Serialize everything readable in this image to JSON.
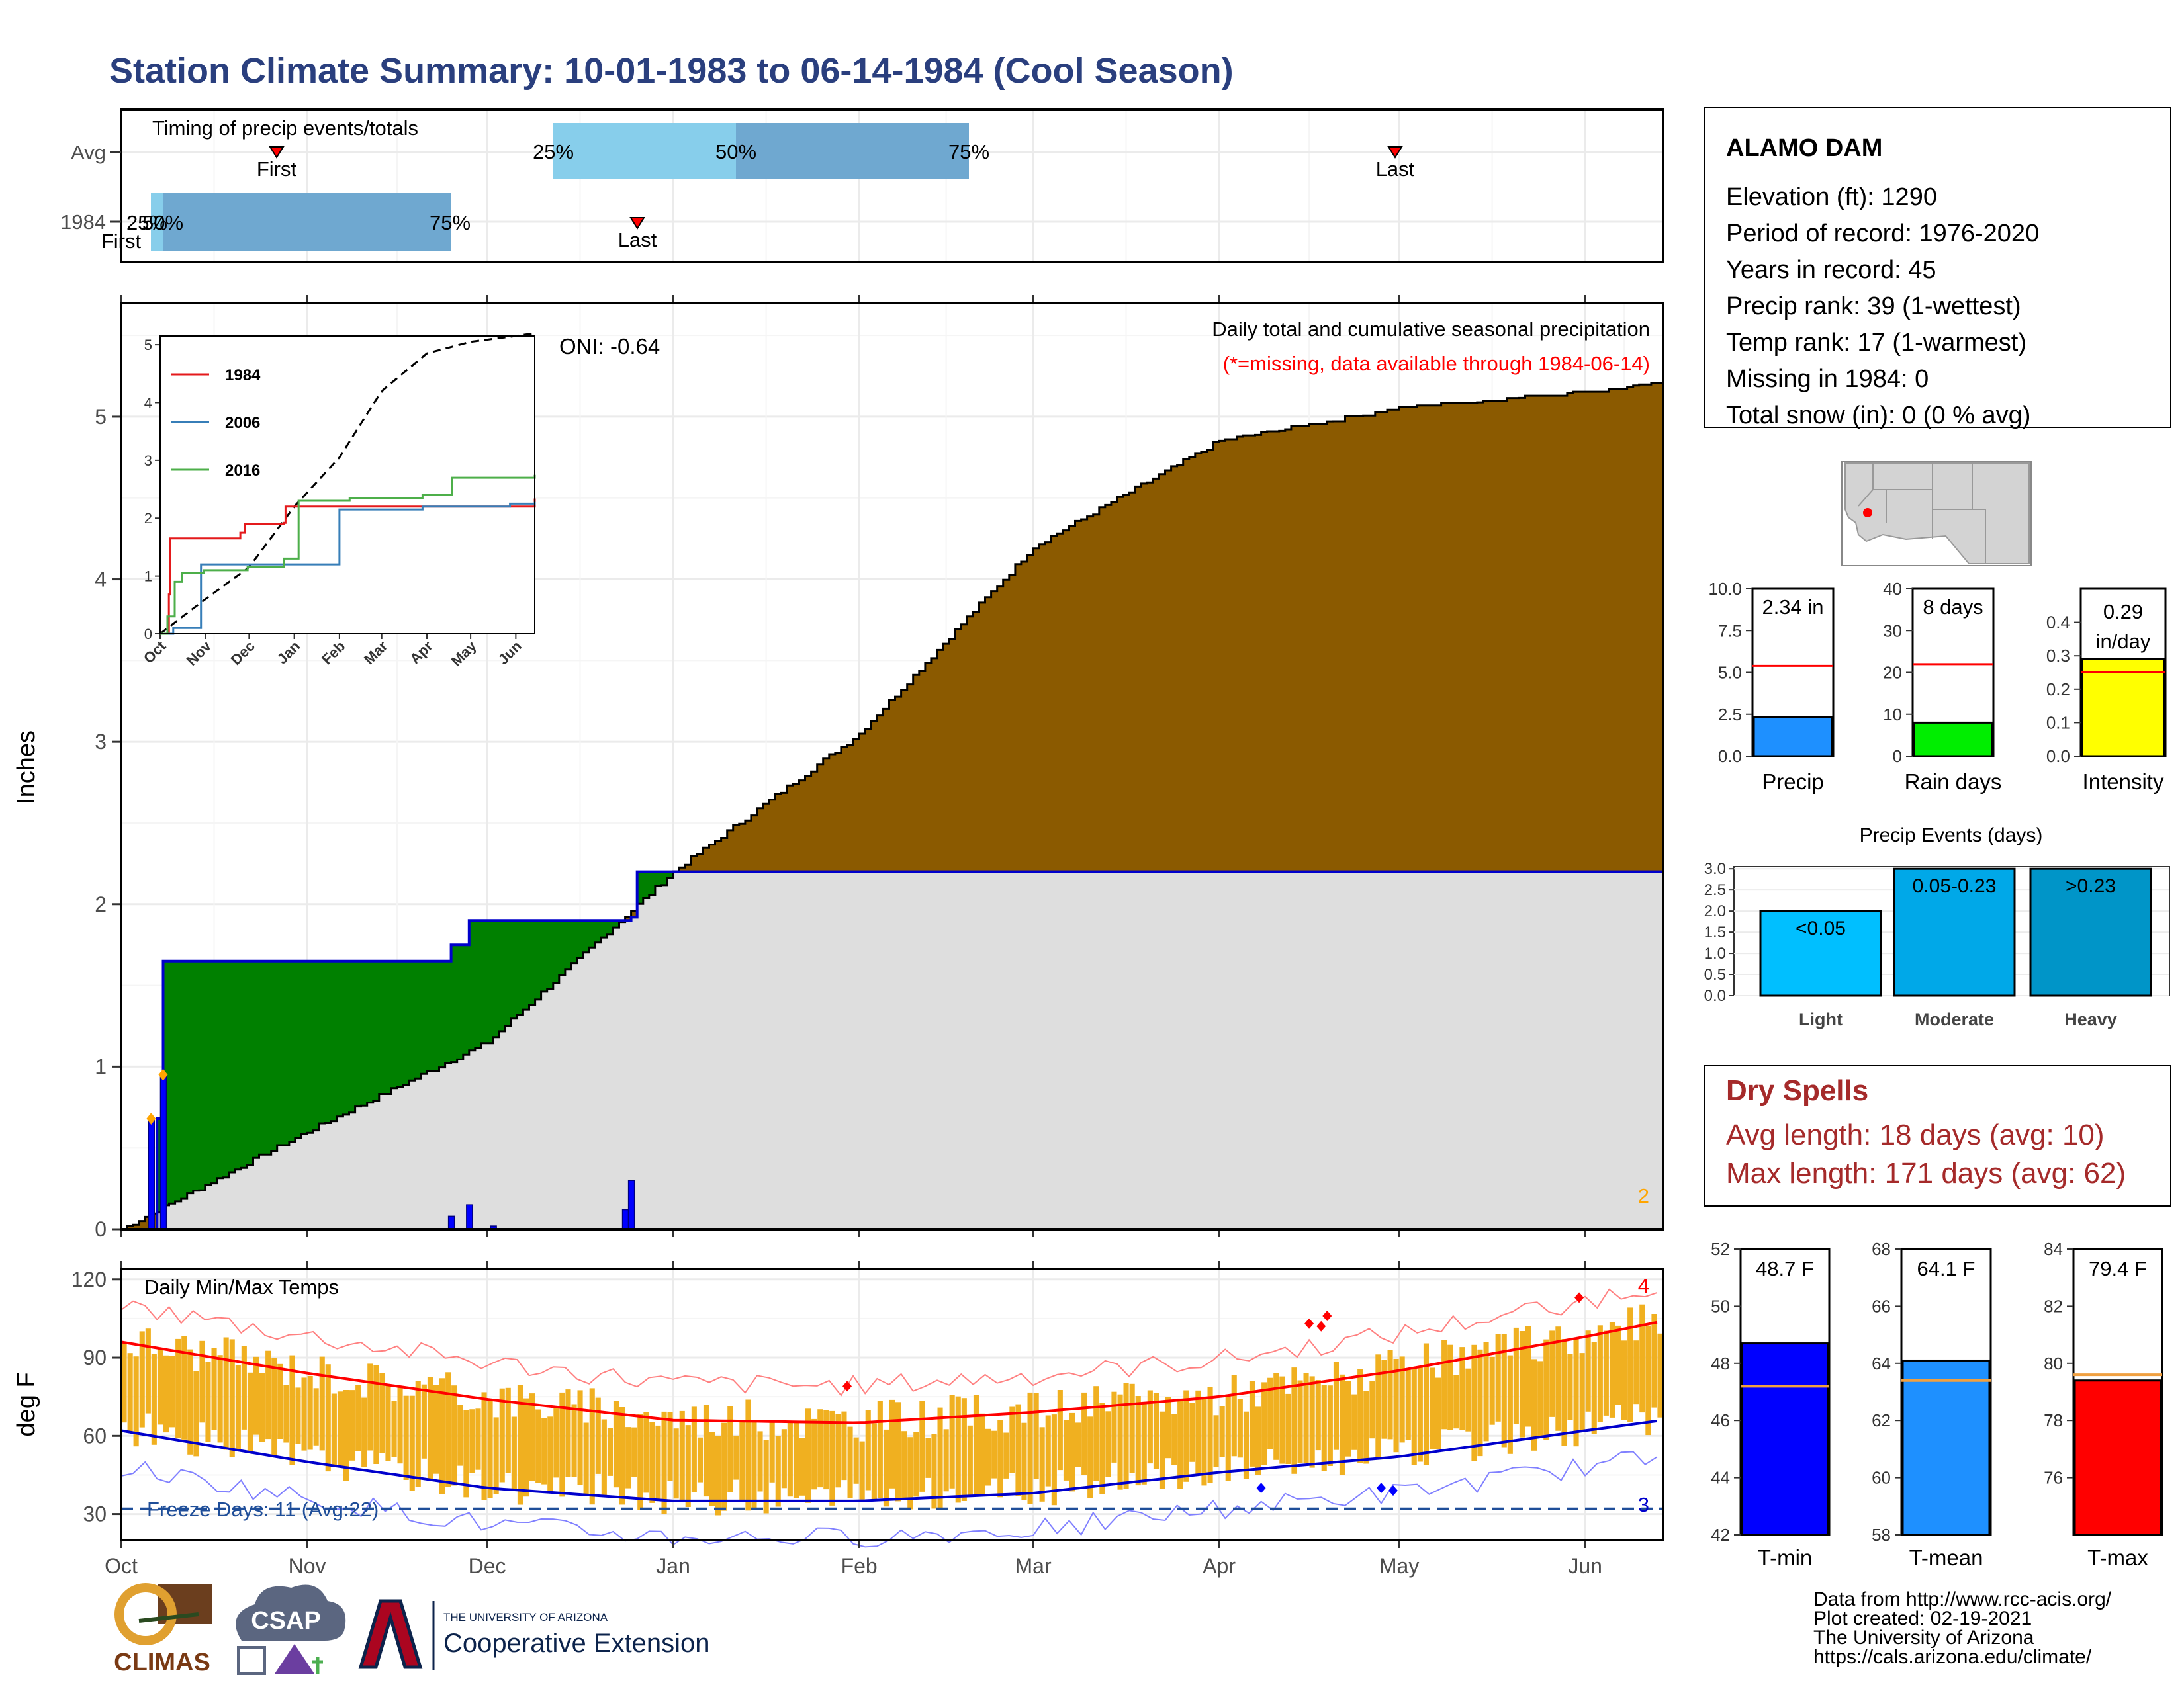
{
  "title": "Station Climate Summary: 10-01-1983 to 06-14-1984 (Cool Season)",
  "colors": {
    "title": "#2a3f7e",
    "precip_fill": "#8b5a00",
    "green_fill": "#008000",
    "grey_fill": "#dedede",
    "blue_line": "#0000cc",
    "temp_bar": "#f0b020",
    "tmax_line": "#ff0000",
    "tmin_line": "#0000cc",
    "dry_text": "#a52a2a",
    "light_blue": "#87ceeb",
    "steel_blue": "#6fa8d0"
  },
  "timing": {
    "title": "Timing of precip events/totals",
    "rows": [
      {
        "label": "Avg",
        "q25": "25%",
        "q50": "50%",
        "q75": "75%",
        "first": "First",
        "last": "Last"
      },
      {
        "label": "1984",
        "q25": "25%",
        "q50": "50%",
        "q75": "75%",
        "first": "First",
        "last": "Last"
      }
    ]
  },
  "main": {
    "ylabel": "Inches",
    "oni": "ONI: -0.64",
    "caption": "Daily total and cumulative seasonal precipitation",
    "missing_note": "(*=missing, data available through 1984-06-14)",
    "corner_count": "2",
    "yticks": [
      "0",
      "1",
      "2",
      "3",
      "4",
      "5"
    ],
    "months": [
      "Oct",
      "Nov",
      "Dec",
      "Jan",
      "Feb",
      "Mar",
      "Apr",
      "May",
      "Jun"
    ]
  },
  "inset": {
    "legend": [
      "1984",
      "2006",
      "2016"
    ],
    "legend_colors": [
      "#e41a1c",
      "#377eb8",
      "#4daf4a"
    ],
    "yticks": [
      "0",
      "1",
      "2",
      "3",
      "4",
      "5"
    ],
    "months": [
      "Oct",
      "Nov",
      "Dec",
      "Jan",
      "Feb",
      "Mar",
      "Apr",
      "May",
      "Jun"
    ]
  },
  "temps": {
    "title": "Daily Min/Max Temps",
    "ylabel": "deg F",
    "freeze": "Freeze Days: 11 (Avg:22)",
    "count_top": "4",
    "count_bottom": "3",
    "yticks": [
      "30",
      "60",
      "90",
      "120"
    ],
    "months": [
      "Oct",
      "Nov",
      "Dec",
      "Jan",
      "Feb",
      "Mar",
      "Apr",
      "May",
      "Jun"
    ]
  },
  "station": {
    "name": "ALAMO DAM",
    "lines": [
      "Elevation (ft): 1290",
      "Period of record: 1976-2020",
      "Years in record: 45",
      "Precip rank: 39 (1-wettest)",
      "Temp rank: 17 (1-warmest)",
      "Missing in 1984: 0",
      "Total snow (in): 0 (0 % avg)"
    ]
  },
  "small_bars": [
    {
      "label": "Precip",
      "value_text": "2.34 in",
      "value": 2.34,
      "avg": 5.4,
      "max": 10,
      "ticks": [
        "0.0",
        "2.5",
        "5.0",
        "7.5",
        "10.0"
      ],
      "color": "#1e90ff"
    },
    {
      "label": "Rain days",
      "value_text": "8 days",
      "value": 8,
      "avg": 22,
      "max": 40,
      "ticks": [
        "0",
        "10",
        "20",
        "30",
        "40"
      ],
      "color": "#00ee00"
    },
    {
      "label": "Intensity",
      "value_text": "0.29 in/day",
      "value": 0.29,
      "avg": 0.25,
      "max": 0.5,
      "ticks": [
        "0.0",
        "0.1",
        "0.2",
        "0.3",
        "0.4"
      ],
      "color": "#ffff00"
    }
  ],
  "events": {
    "title": "Precip Events (days)",
    "yticks": [
      "0.0",
      "0.5",
      "1.0",
      "1.5",
      "2.0",
      "2.5",
      "3.0"
    ],
    "bars": [
      {
        "category": "Light",
        "label": "<0.05",
        "value": 2,
        "color": "#00bfff"
      },
      {
        "category": "Moderate",
        "label": "0.05-0.23",
        "value": 3,
        "color": "#00a8e8"
      },
      {
        "category": "Heavy",
        "label": ">0.23",
        "value": 3,
        "color": "#0095c8"
      }
    ]
  },
  "dry_spells": {
    "title": "Dry Spells",
    "avg": "Avg length: 18 days (avg: 10)",
    "max": "Max length: 171 days (avg: 62)"
  },
  "temp_bars": [
    {
      "label": "T-min",
      "value_text": "48.7 F",
      "value": 48.7,
      "avg": 47.2,
      "min": 42,
      "max": 52,
      "ticks": [
        "42",
        "44",
        "46",
        "48",
        "50",
        "52"
      ],
      "color": "#0000ff"
    },
    {
      "label": "T-mean",
      "value_text": "64.1 F",
      "value": 64.1,
      "avg": 63.4,
      "min": 58,
      "max": 68,
      "ticks": [
        "58",
        "60",
        "62",
        "64",
        "66",
        "68"
      ],
      "color": "#1e90ff"
    },
    {
      "label": "T-max",
      "value_text": "79.4 F",
      "value": 79.4,
      "avg": 79.6,
      "min": 74,
      "max": 84,
      "ticks": [
        "76",
        "78",
        "80",
        "82",
        "84"
      ],
      "color": "#ff0000"
    }
  ],
  "credits": [
    "Data from http://www.rcc-acis.org/",
    "Plot created: 02-19-2021",
    "The University of Arizona",
    "https://cals.arizona.edu/climate/"
  ],
  "logos": {
    "climas": "CLIMAS",
    "csap": "CSAP",
    "ua_small": "THE UNIVERSITY OF ARIZONA",
    "ua_big": "Cooperative Extension"
  },
  "chart_data": {
    "type": "area",
    "title": "Daily total and cumulative seasonal precipitation",
    "ylabel": "Inches",
    "ylim": [
      0,
      5.7
    ],
    "x_range": [
      "1983-10-01",
      "1984-06-14"
    ],
    "series": [
      {
        "name": "1984",
        "x": [
          "1983-10-01",
          "1983-10-07",
          "1983-10-08",
          "1983-11-17",
          "1983-11-25",
          "1983-11-28",
          "1983-12-25",
          "1983-12-26",
          "1984-06-14"
        ],
        "values": [
          0,
          0.68,
          1.65,
          1.65,
          1.75,
          1.9,
          1.92,
          2.2,
          2.34
        ]
      },
      {
        "name": "Average",
        "x": [
          "1983-10-01",
          "1983-11-01",
          "1983-12-01",
          "1984-01-01",
          "1984-02-01",
          "1984-03-01",
          "1984-04-01",
          "1984-05-01",
          "1984-06-01",
          "1984-06-14"
        ],
        "values": [
          0,
          0.6,
          1.15,
          2.2,
          3.05,
          4.2,
          4.85,
          5.05,
          5.15,
          5.2
        ]
      }
    ],
    "daily_precip": {
      "dates": [
        "1983-10-06",
        "1983-10-08",
        "1983-11-25",
        "1983-11-28",
        "1983-12-02",
        "1983-12-24",
        "1983-12-25"
      ],
      "values": [
        0.68,
        0.95,
        0.08,
        0.15,
        0.02,
        0.12,
        0.3
      ]
    }
  }
}
